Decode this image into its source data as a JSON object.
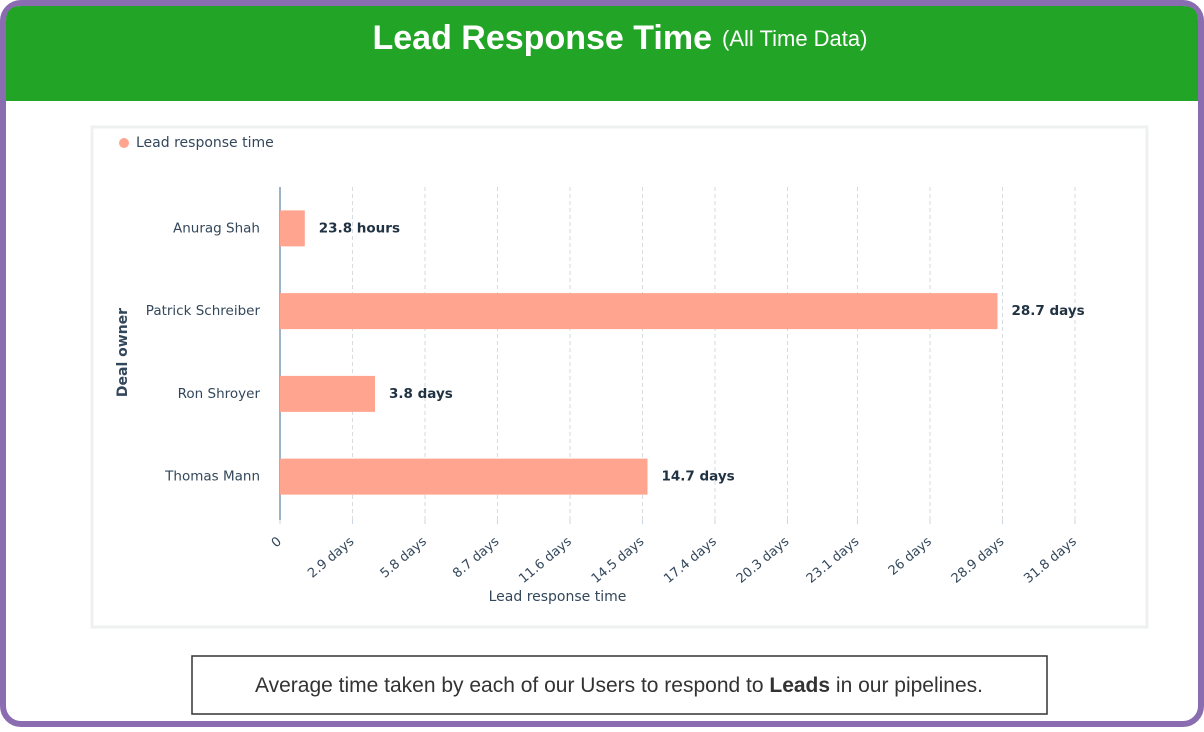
{
  "header": {
    "title": "Lead Response Time",
    "subtitle": "(All Time Data)"
  },
  "chart_data": {
    "type": "bar",
    "orientation": "horizontal",
    "categories": [
      "Anurag Shah",
      "Patrick Schreiber",
      "Ron Shroyer",
      "Thomas Mann"
    ],
    "series": [
      {
        "name": "Lead response time",
        "color": "#ffa48f",
        "values": [
          0.9917,
          28.7,
          3.8,
          14.7
        ],
        "value_labels": [
          "23.8 hours",
          "28.7 days",
          "3.8 days",
          "14.7 days"
        ]
      }
    ],
    "xlim": [
      0,
      31.8
    ],
    "xticks": [
      0,
      {
        "value": 2.9,
        "label": "2.9 days"
      },
      {
        "value": 5.8,
        "label": "5.8 days"
      },
      {
        "value": 8.7,
        "label": "8.7 days"
      },
      {
        "value": 11.6,
        "label": "11.6 days"
      },
      {
        "value": 14.5,
        "label": "14.5 days"
      },
      {
        "value": 17.4,
        "label": "17.4 days"
      },
      {
        "value": 20.3,
        "label": "20.3 days"
      },
      {
        "value": 23.1,
        "label": "23.1 days"
      },
      {
        "value": 26,
        "label": "26 days"
      },
      {
        "value": 28.9,
        "label": "28.9 days"
      },
      {
        "value": 31.8,
        "label": "31.8 days"
      }
    ],
    "xlabel": "Lead response time",
    "ylabel": "Deal owner",
    "grid": true,
    "legend": "top-left"
  },
  "caption": {
    "before": "Average time taken by each of our Users to respond to ",
    "bold": "Leads",
    "after": " in our pipelines."
  }
}
